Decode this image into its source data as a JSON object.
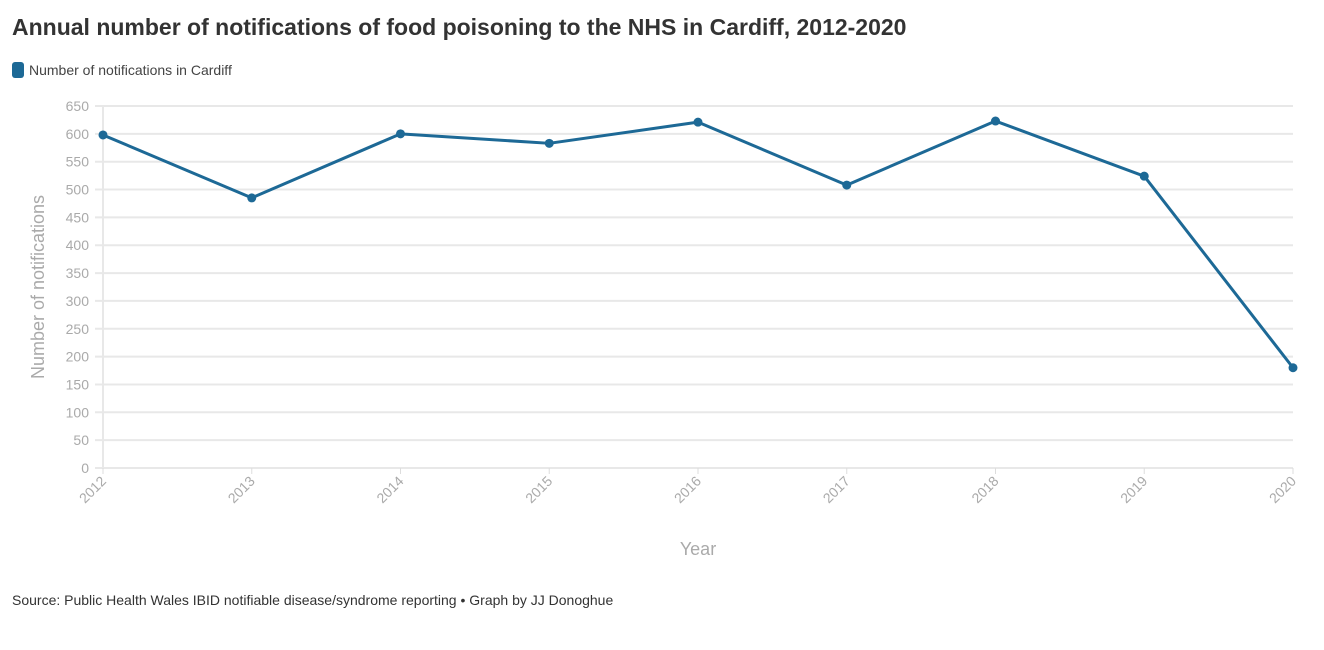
{
  "title": "Annual number of notifications of food poisoning to the NHS in Cardiff, 2012-2020",
  "source": "Source: Public Health Wales IBID notifiable disease/syndrome reporting • Graph by JJ Donoghue",
  "chart_data": {
    "type": "line",
    "title": "Annual number of notifications of food poisoning to the NHS in Cardiff, 2012-2020",
    "xlabel": "Year",
    "ylabel": "Number of notifications",
    "x": [
      "2012",
      "2013",
      "2014",
      "2015",
      "2016",
      "2017",
      "2018",
      "2019",
      "2020"
    ],
    "series": [
      {
        "name": "Number of notifications in Cardiff",
        "values": [
          598,
          485,
          600,
          583,
          621,
          508,
          623,
          524,
          180
        ],
        "color": "#1d6996"
      }
    ],
    "ylim": [
      0,
      650
    ],
    "yticks": [
      0,
      50,
      100,
      150,
      200,
      250,
      300,
      350,
      400,
      450,
      500,
      550,
      600,
      650
    ],
    "grid": true,
    "legend": "top-left"
  }
}
